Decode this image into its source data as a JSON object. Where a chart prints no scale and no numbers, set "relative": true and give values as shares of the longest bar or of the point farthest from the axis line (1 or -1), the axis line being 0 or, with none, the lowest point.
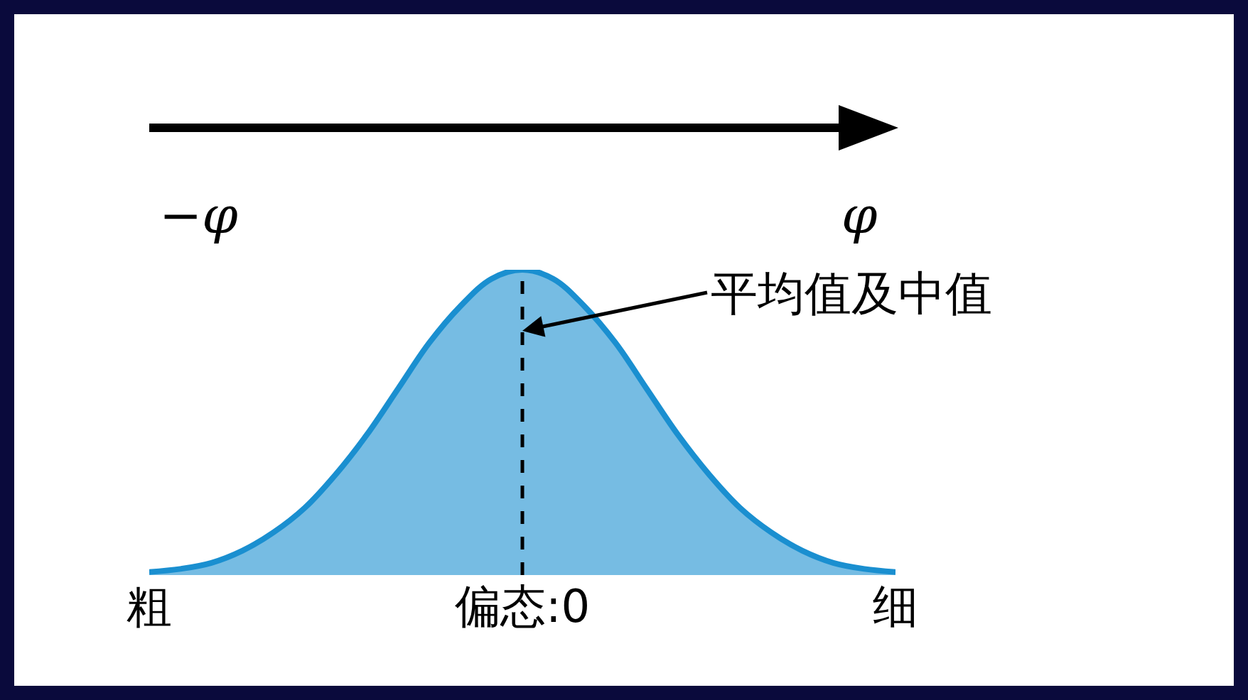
{
  "chart_data": {
    "type": "area",
    "relative": true,
    "categories": [
      "粗",
      null,
      null,
      null,
      null,
      null,
      null,
      null,
      null,
      null,
      null,
      null,
      "偏态:0",
      null,
      null,
      null,
      null,
      null,
      null,
      null,
      null,
      null,
      null,
      null,
      "细"
    ],
    "series": [
      {
        "color": "#1a8fd0",
        "values": [
          0.01,
          0.02,
          0.04,
          0.08,
          0.14,
          0.22,
          0.33,
          0.46,
          0.61,
          0.76,
          0.88,
          0.97,
          1,
          0.97,
          0.88,
          0.76,
          0.61,
          0.46,
          0.33,
          0.22,
          0.14,
          0.08,
          0.04,
          0.02,
          0.01
        ]
      }
    ],
    "ref_lines": [
      {
        "axis": "x",
        "value": "偏态:0",
        "color": "#000000",
        "line_style": "dashed"
      }
    ],
    "annotations": [
      "−φ",
      "φ",
      {
        "text": "平均值及中值",
        "x": "偏态:0",
        "y": 0.8
      }
    ]
  }
}
